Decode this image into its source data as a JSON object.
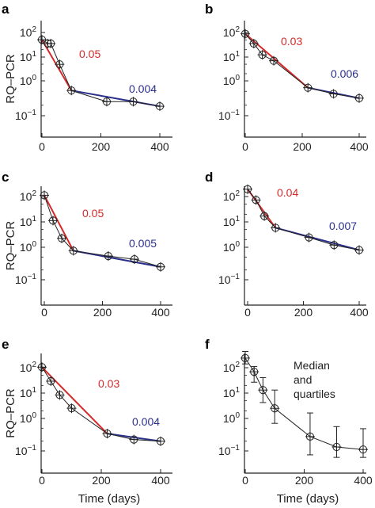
{
  "colors": {
    "fast_fit": "#d42a2a",
    "slow_fit": "#2b2f8c",
    "data": "#222222",
    "axis": "#222222"
  },
  "axes": {
    "ylabel": "RQ–PCR",
    "xlabel": "Time (days)",
    "xticks": [
      "0",
      "200",
      "400"
    ],
    "yticks": [
      {
        "base": "10",
        "exp": "2"
      },
      {
        "base": "10",
        "exp": "1"
      },
      {
        "base": "10",
        "exp": "0"
      },
      {
        "base": "10",
        "exp": "−1"
      }
    ]
  },
  "chart_data": [
    {
      "type": "scatter",
      "panel": "a",
      "scale_y": "log",
      "xlim": [
        0,
        440
      ],
      "ylim": [
        0.05,
        300
      ],
      "series": [
        {
          "x": [
            0,
            20,
            30,
            60,
            100,
            220,
            310,
            400
          ],
          "y": [
            70,
            50,
            50,
            8,
            0.8,
            0.3,
            0.3,
            0.2
          ]
        }
      ],
      "fits": [
        {
          "label": "0.05",
          "x": [
            0,
            100
          ],
          "y": [
            70,
            0.8
          ],
          "color": "fast"
        },
        {
          "label": "0.004",
          "x": [
            100,
            400
          ],
          "y": [
            0.8,
            0.2
          ],
          "color": "slow"
        }
      ]
    },
    {
      "type": "scatter",
      "panel": "b",
      "scale_y": "log",
      "xlim": [
        0,
        440
      ],
      "ylim": [
        0.05,
        300
      ],
      "series": [
        {
          "x": [
            0,
            30,
            60,
            100,
            220,
            310,
            400
          ],
          "y": [
            250,
            100,
            35,
            20,
            1.6,
            0.9,
            0.6
          ]
        }
      ],
      "fits": [
        {
          "label": "0.03",
          "x": [
            0,
            220
          ],
          "y": [
            250,
            1.6
          ],
          "color": "fast"
        },
        {
          "label": "0.006",
          "x": [
            220,
            400
          ],
          "y": [
            1.6,
            0.6
          ],
          "color": "slow"
        }
      ]
    },
    {
      "type": "scatter",
      "panel": "c",
      "scale_y": "log",
      "xlim": [
        0,
        440
      ],
      "ylim": [
        0.05,
        800
      ],
      "series": [
        {
          "x": [
            0,
            30,
            60,
            100,
            220,
            310,
            400
          ],
          "y": [
            200,
            20,
            4,
            1.3,
            0.8,
            0.6,
            0.3
          ]
        }
      ],
      "fits": [
        {
          "label": "0.05",
          "x": [
            0,
            100
          ],
          "y": [
            200,
            1.3
          ],
          "color": "fast"
        },
        {
          "label": "0.005",
          "x": [
            100,
            400
          ],
          "y": [
            1.3,
            0.3
          ],
          "color": "slow"
        }
      ]
    },
    {
      "type": "scatter",
      "panel": "d",
      "scale_y": "log",
      "xlim": [
        0,
        440
      ],
      "ylim": [
        0.05,
        800
      ],
      "series": [
        {
          "x": [
            0,
            30,
            60,
            100,
            220,
            310,
            400
          ],
          "y": [
            400,
            150,
            35,
            12,
            5,
            2.5,
            1.6
          ]
        }
      ],
      "fits": [
        {
          "label": "0.04",
          "x": [
            0,
            100
          ],
          "y": [
            400,
            12
          ],
          "color": "fast"
        },
        {
          "label": "0.007",
          "x": [
            100,
            400
          ],
          "y": [
            12,
            1.6
          ],
          "color": "slow"
        }
      ]
    },
    {
      "type": "scatter",
      "panel": "e",
      "scale_y": "log",
      "xlim": [
        0,
        440
      ],
      "ylim": [
        0.05,
        800
      ],
      "series": [
        {
          "x": [
            0,
            30,
            60,
            100,
            220,
            310,
            400
          ],
          "y": [
            250,
            70,
            20,
            6,
            0.6,
            0.35,
            0.3
          ]
        }
      ],
      "fits": [
        {
          "label": "0.03",
          "x": [
            0,
            220
          ],
          "y": [
            250,
            0.6
          ],
          "color": "fast"
        },
        {
          "label": "0.004",
          "x": [
            220,
            400
          ],
          "y": [
            0.6,
            0.3
          ],
          "color": "slow"
        }
      ]
    },
    {
      "type": "line",
      "panel": "f",
      "scale_y": "log",
      "xlim": [
        0,
        440
      ],
      "ylim": [
        0.03,
        800
      ],
      "note": [
        "Median",
        "and",
        "quartiles"
      ],
      "series": [
        {
          "x": [
            0,
            30,
            60,
            100,
            220,
            310,
            400
          ],
          "y": [
            250,
            75,
            15,
            3,
            0.25,
            0.1,
            0.08
          ],
          "q1": [
            150,
            30,
            5,
            0.8,
            0.05,
            0.04,
            0.04
          ],
          "q3": [
            450,
            120,
            45,
            15,
            2,
            0.6,
            0.5
          ]
        }
      ]
    }
  ]
}
